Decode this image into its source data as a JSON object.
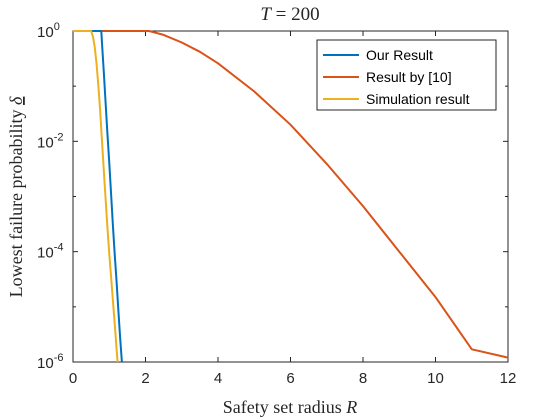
{
  "chart_data": {
    "type": "line",
    "title": "T = 200",
    "title_parts": {
      "var": "T",
      "rest": " = 200"
    },
    "xlabel": "Safety set radius R",
    "xlabel_parts": {
      "text": "Safety set radius ",
      "var": "R"
    },
    "ylabel": "Lowest failure probability δ",
    "ylabel_parts": {
      "text": "Lowest failure probability ",
      "var": "δ"
    },
    "x_scale": "linear",
    "y_scale": "log",
    "xlim": [
      0,
      12
    ],
    "ylim": [
      1e-06,
      1
    ],
    "x_ticks": [
      0,
      2,
      4,
      6,
      8,
      10,
      12
    ],
    "x_tick_labels": [
      "0",
      "2",
      "4",
      "6",
      "8",
      "10",
      "12"
    ],
    "y_ticks": [
      1,
      0.01,
      0.0001,
      1e-06
    ],
    "y_tick_labels": [
      {
        "base": "10",
        "exp": "0"
      },
      {
        "base": "10",
        "exp": "-2"
      },
      {
        "base": "10",
        "exp": "-4"
      },
      {
        "base": "10",
        "exp": "-6"
      }
    ],
    "grid": false,
    "legend_position": "top-right",
    "series": [
      {
        "name": "Our Result",
        "color": "#0072BD",
        "x": [
          0,
          0.78,
          0.8,
          0.85,
          0.9,
          0.95,
          1.0,
          1.05,
          1.1,
          1.15,
          1.2,
          1.25,
          1.3,
          1.35
        ],
        "y": [
          1,
          1,
          0.6,
          0.18,
          0.05,
          0.014,
          0.004,
          0.0011,
          0.0003,
          9e-05,
          3e-05,
          9e-06,
          2.8e-06,
          1e-06
        ]
      },
      {
        "name": "Result by [10]",
        "color": "#D95319",
        "x": [
          0,
          2.1,
          2.5,
          3,
          3.5,
          4,
          5,
          6,
          7,
          8,
          9,
          10,
          11,
          12
        ],
        "y": [
          1,
          1,
          0.85,
          0.62,
          0.42,
          0.26,
          0.08,
          0.02,
          0.0039,
          0.00067,
          0.0001,
          1.5e-05,
          1.7e-06,
          1.2e-06
        ]
      },
      {
        "name": "Simulation result",
        "color": "#EDB120",
        "x": [
          0,
          0.5,
          0.55,
          0.6,
          0.65,
          0.7,
          0.75,
          0.8,
          0.85,
          0.9,
          0.95,
          1.0,
          1.05,
          1.1,
          1.15,
          1.2,
          1.23
        ],
        "y": [
          1,
          1,
          0.8,
          0.5,
          0.25,
          0.1,
          0.035,
          0.01,
          0.003,
          0.0009,
          0.00028,
          9e-05,
          3.5e-05,
          1.3e-05,
          5e-06,
          1.8e-06,
          1e-06
        ]
      }
    ]
  }
}
